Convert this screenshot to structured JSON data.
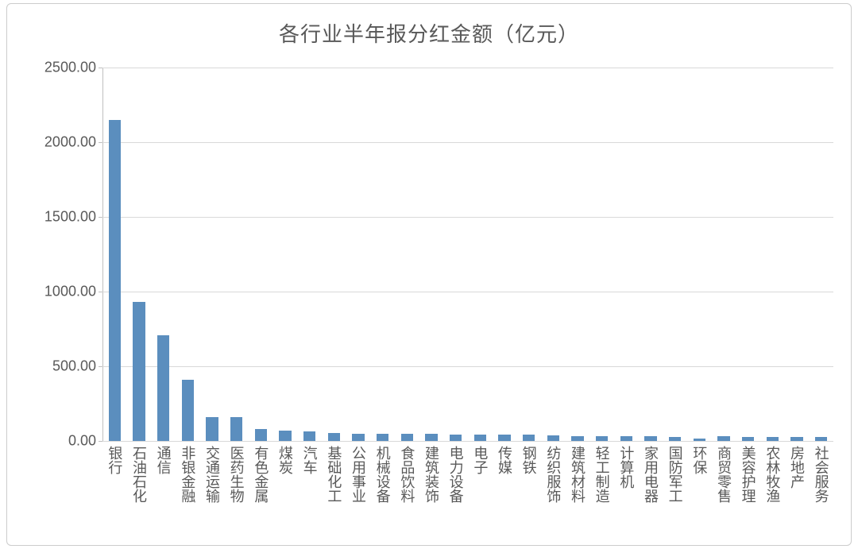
{
  "chart": {
    "type": "bar",
    "title": "各行业半年报分红金额（亿元）",
    "title_fontsize": 26,
    "title_color": "#595959",
    "background_color": "#ffffff",
    "border_color": "#cccccc",
    "grid_color": "#d9d9d9",
    "axis_color": "#bfbfbf",
    "label_color": "#595959",
    "label_fontsize": 18,
    "bar_color": "#5b8ebe",
    "bar_width_ratio": 0.5,
    "ylim": [
      0,
      2500
    ],
    "ytick_step": 500,
    "yticks": [
      "0.00",
      "500.00",
      "1000.00",
      "1500.00",
      "2000.00",
      "2500.00"
    ],
    "categories": [
      "银行",
      "石油石化",
      "通信",
      "非银金融",
      "交通运输",
      "医药生物",
      "有色金属",
      "煤炭",
      "汽车",
      "基础化工",
      "公用事业",
      "机械设备",
      "食品饮料",
      "建筑装饰",
      "电力设备",
      "电子",
      "传媒",
      "钢铁",
      "纺织服饰",
      "建筑材料",
      "轻工制造",
      "计算机",
      "家用电器",
      "国防军工",
      "环保",
      "商贸零售",
      "美容护理",
      "农林牧渔",
      "房地产",
      "社会服务"
    ],
    "values": [
      2150,
      930,
      710,
      410,
      160,
      160,
      80,
      70,
      65,
      55,
      50,
      50,
      50,
      50,
      45,
      45,
      45,
      40,
      35,
      30,
      30,
      30,
      30,
      28,
      15,
      30,
      25,
      25,
      25,
      25
    ]
  }
}
